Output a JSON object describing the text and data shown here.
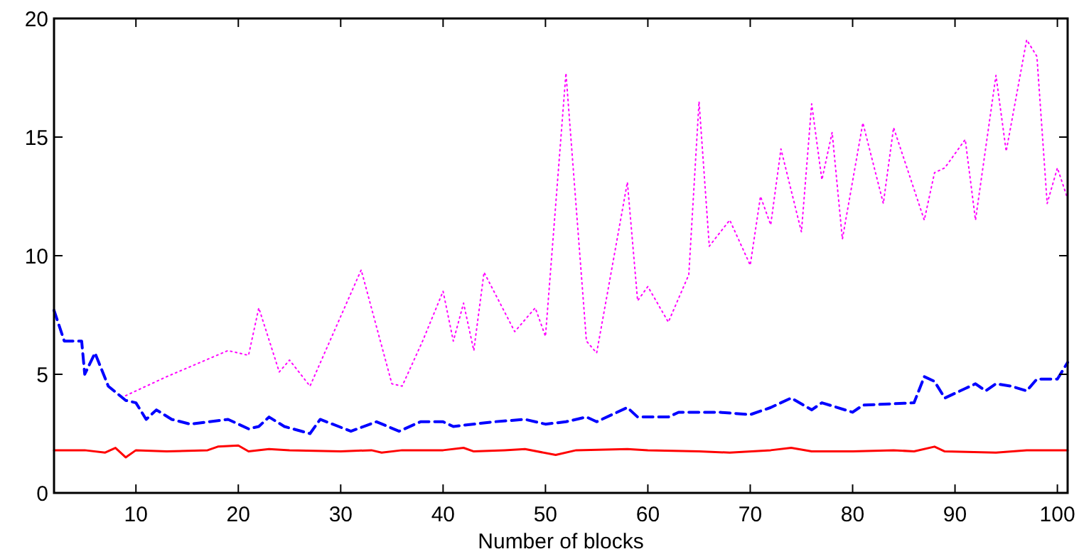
{
  "chart_data": {
    "type": "line",
    "xlabel": "Number of blocks",
    "xlim": [
      2,
      101
    ],
    "ylim": [
      0,
      20
    ],
    "xticks": [
      10,
      20,
      30,
      40,
      50,
      60,
      70,
      80,
      90,
      100
    ],
    "yticks": [
      0,
      5,
      10,
      15,
      20
    ],
    "grid": false,
    "marker": "none",
    "series": [
      {
        "color": "#ff0000",
        "line_style": "solid",
        "x": [
          2,
          5,
          7,
          8,
          9,
          10,
          13,
          17,
          18,
          20,
          21,
          23,
          25,
          30,
          33,
          34,
          36,
          40,
          42,
          43,
          46,
          48,
          51,
          53,
          58,
          60,
          65,
          68,
          72,
          74,
          76,
          80,
          84,
          86,
          88,
          89,
          94,
          97,
          101
        ],
        "values": [
          1.8,
          1.8,
          1.7,
          1.9,
          1.5,
          1.8,
          1.75,
          1.8,
          1.95,
          2.0,
          1.75,
          1.85,
          1.8,
          1.75,
          1.8,
          1.7,
          1.8,
          1.8,
          1.9,
          1.75,
          1.8,
          1.85,
          1.6,
          1.8,
          1.85,
          1.8,
          1.75,
          1.7,
          1.8,
          1.9,
          1.75,
          1.75,
          1.8,
          1.75,
          1.95,
          1.75,
          1.7,
          1.8,
          1.8
        ]
      },
      {
        "color": "#0000ff",
        "line_style": "dashed",
        "x": [
          2,
          3,
          4.7,
          5,
          6,
          7.3,
          9,
          10,
          11,
          12,
          13.5,
          15.3,
          19,
          21,
          22,
          23,
          24.5,
          27,
          28,
          31,
          33.5,
          35.7,
          37.8,
          40,
          41,
          45,
          48,
          50,
          52,
          54,
          55,
          58,
          59,
          62,
          63,
          67,
          70,
          72,
          74,
          76,
          77,
          80,
          81,
          86,
          87,
          88,
          89,
          91,
          92,
          93,
          94,
          95.5,
          97,
          98,
          100,
          101
        ],
        "values": [
          7.7,
          6.4,
          6.4,
          5.0,
          5.9,
          4.5,
          3.9,
          3.8,
          3.1,
          3.5,
          3.1,
          2.9,
          3.1,
          2.7,
          2.8,
          3.2,
          2.8,
          2.5,
          3.1,
          2.6,
          3.0,
          2.6,
          3.0,
          3.0,
          2.8,
          3.0,
          3.1,
          2.9,
          3.0,
          3.2,
          3.0,
          3.6,
          3.2,
          3.2,
          3.4,
          3.4,
          3.3,
          3.6,
          4.0,
          3.5,
          3.8,
          3.4,
          3.7,
          3.8,
          4.9,
          4.7,
          4.0,
          4.4,
          4.6,
          4.3,
          4.6,
          4.5,
          4.3,
          4.8,
          4.8,
          5.5
        ]
      },
      {
        "color": "#ff00ff",
        "line_style": "dotted",
        "x": [
          9,
          13,
          19,
          21,
          22,
          24,
          25,
          27,
          32,
          35,
          36,
          38,
          40,
          41,
          42,
          43,
          44,
          47,
          49,
          50,
          52,
          54,
          55,
          58,
          59,
          60,
          62,
          64,
          65,
          66,
          68,
          70,
          71,
          72,
          73,
          75,
          76,
          77,
          78,
          79,
          81,
          83,
          84,
          87,
          88,
          89,
          91,
          92,
          94,
          95,
          97,
          98,
          99,
          100,
          101
        ],
        "values": [
          4.1,
          4.9,
          6.0,
          5.8,
          7.8,
          5.1,
          5.6,
          4.5,
          9.4,
          4.6,
          4.5,
          6.4,
          8.5,
          6.4,
          8.0,
          6.0,
          9.3,
          6.8,
          7.8,
          6.6,
          17.7,
          6.4,
          5.9,
          13.1,
          8.1,
          8.7,
          7.2,
          9.2,
          16.5,
          10.4,
          11.5,
          9.6,
          12.5,
          11.3,
          14.5,
          11.0,
          16.4,
          13.2,
          15.2,
          10.7,
          15.6,
          12.2,
          15.4,
          11.5,
          13.5,
          13.7,
          14.9,
          11.5,
          17.6,
          14.4,
          19.1,
          18.4,
          12.2,
          13.7,
          12.4
        ]
      }
    ]
  }
}
